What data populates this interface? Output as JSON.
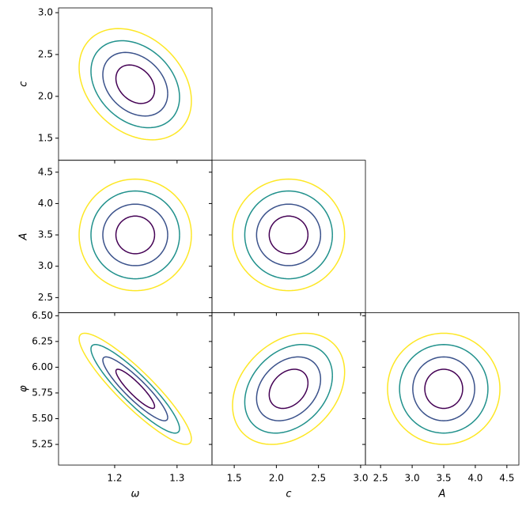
{
  "chart_data": {
    "type": "corner",
    "level_colors": [
      "#440154",
      "#3b528b",
      "#21918c",
      "#fde725"
    ],
    "variables": [
      {
        "label": "ω",
        "lim": [
          1.11,
          1.356
        ],
        "ticks": [
          1.2,
          1.3
        ],
        "center": 1.233,
        "halfwidths": [
          0.031,
          0.052,
          0.071,
          0.09
        ]
      },
      {
        "label": "c",
        "lim": [
          1.236,
          3.057
        ],
        "ticks": [
          1.5,
          {
            "value": 2.0,
            "label": "2.0"
          },
          2.5,
          {
            "value": 3.0,
            "label": "3.0"
          }
        ],
        "center": 2.145,
        "halfwidths": [
          0.23,
          0.38,
          0.52,
          0.665
        ]
      },
      {
        "label": "A",
        "lim": [
          2.26,
          4.69
        ],
        "ticks": [
          2.5,
          {
            "value": 3.0,
            "label": "3.0"
          },
          3.5,
          {
            "value": 4.0,
            "label": "4.0"
          },
          4.5
        ],
        "center": 3.5,
        "halfwidths": [
          0.3,
          0.49,
          0.7,
          0.89
        ]
      },
      {
        "label": "φ",
        "lim": [
          5.05,
          6.53
        ],
        "ticks": [
          5.25,
          {
            "value": 5.5,
            "label": "5.50"
          },
          5.75,
          {
            "value": 6.0,
            "label": "6.00"
          },
          6.25,
          {
            "value": 6.5,
            "label": "6.50"
          }
        ],
        "center": 5.79,
        "halfwidths": [
          0.19,
          0.31,
          0.43,
          0.54
        ]
      }
    ],
    "panel_correlations": [
      -0.3,
      0,
      0,
      -0.9,
      0.3,
      0
    ]
  }
}
